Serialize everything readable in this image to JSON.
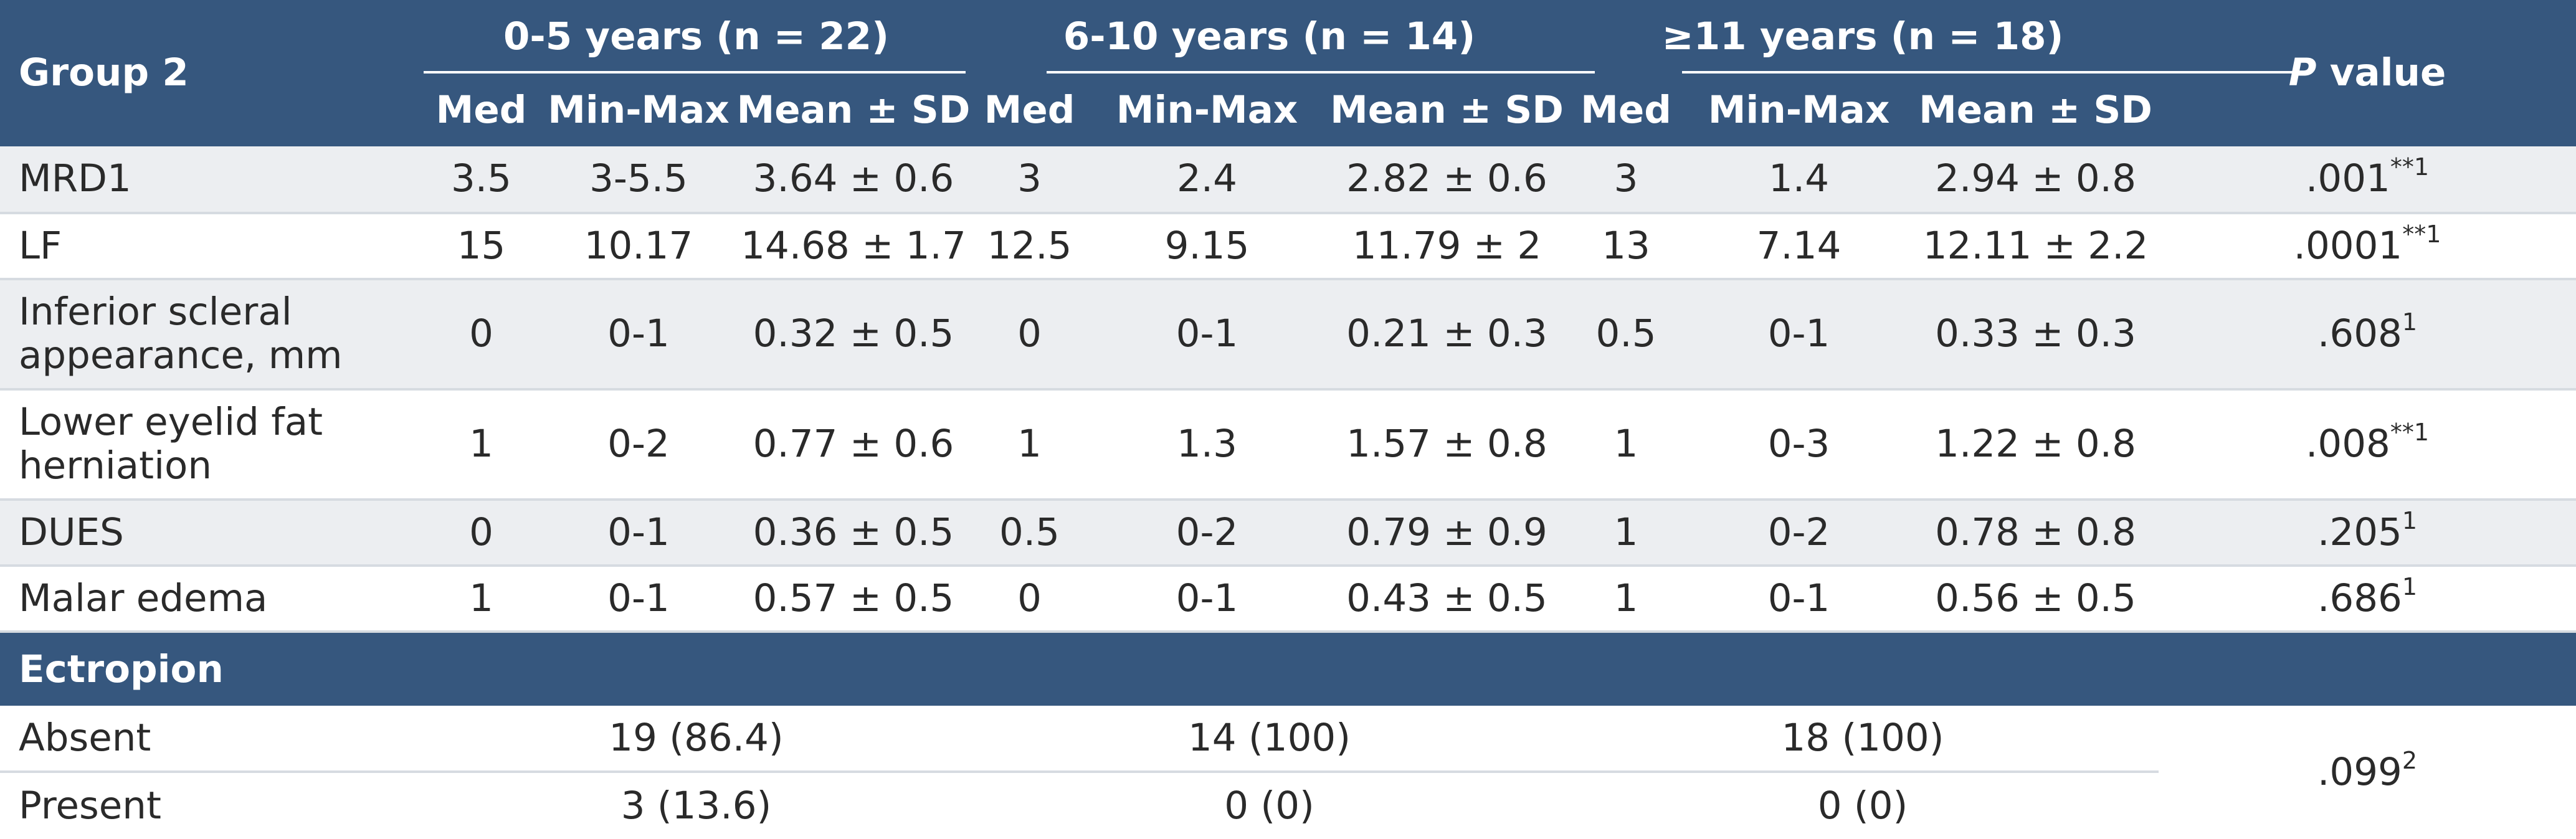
{
  "header": {
    "group": "Group 2",
    "age_groups": [
      "0-5 years (n = 22)",
      "6-10 years (n = 14)",
      "≥11 years (n = 18)"
    ],
    "pvalue_italic": "P",
    "pvalue_rest": " value",
    "sub_med": "Med",
    "sub_minmax": "Min-Max",
    "sub_mean": "Mean ± SD"
  },
  "rows": [
    {
      "label": "MRD1",
      "c": [
        "3.5",
        "3-5.5",
        "3.64 ± 0.6",
        "3",
        "2.4",
        "2.82 ± 0.6",
        "3",
        "1.4",
        "2.94 ± 0.8"
      ],
      "p": ".001",
      "sup": "**1"
    },
    {
      "label": "LF",
      "c": [
        "15",
        "10.17",
        "14.68 ± 1.7",
        "12.5",
        "9.15",
        "11.79 ± 2",
        "13",
        "7.14",
        "12.11 ± 2.2"
      ],
      "p": ".0001",
      "sup": "**1"
    },
    {
      "label": "Inferior scleral appearance, mm",
      "c": [
        "0",
        "0-1",
        "0.32 ± 0.5",
        "0",
        "0-1",
        "0.21 ± 0.3",
        "0.5",
        "0-1",
        "0.33 ± 0.3"
      ],
      "p": ".608",
      "sup": "1"
    },
    {
      "label": "Lower eyelid fat herniation",
      "c": [
        "1",
        "0-2",
        "0.77 ± 0.6",
        "1",
        "1.3",
        "1.57 ± 0.8",
        "1",
        "0-3",
        "1.22 ± 0.8"
      ],
      "p": ".008",
      "sup": "**1"
    },
    {
      "label": "DUES",
      "c": [
        "0",
        "0-1",
        "0.36 ± 0.5",
        "0.5",
        "0-2",
        "0.79 ± 0.9",
        "1",
        "0-2",
        "0.78 ± 0.8"
      ],
      "p": ".205",
      "sup": "1"
    },
    {
      "label": "Malar edema",
      "c": [
        "1",
        "0-1",
        "0.57 ± 0.5",
        "0",
        "0-1",
        "0.43 ± 0.5",
        "1",
        "0-1",
        "0.56 ± 0.5"
      ],
      "p": ".686",
      "sup": "1"
    }
  ],
  "section": "Ectropion",
  "ectropion": {
    "absent_label": "Absent",
    "present_label": "Present",
    "absent": [
      "19 (86.4)",
      "14 (100)",
      "18 (100)"
    ],
    "present": [
      "3 (13.6)",
      "0 (0)",
      "0 (0)"
    ],
    "p": ".099",
    "sup": "2"
  }
}
